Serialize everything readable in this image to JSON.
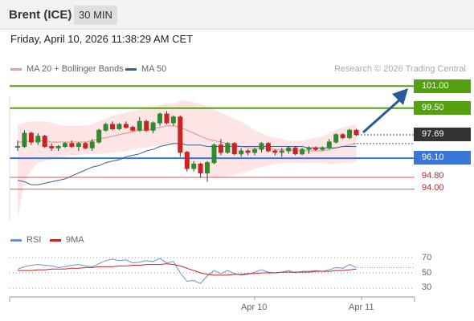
{
  "header": {
    "instrument": "Brent (ICE)",
    "interval": "30 MIN"
  },
  "timestamp": "Friday, April 10, 2026 11:38:29 AM CET",
  "legend": {
    "bb_label": "MA 20 + Bollinger Bands",
    "ma50_label": "MA 50",
    "credit": "Research © 2026 Trading Central",
    "rsi_label": "RSI",
    "ma9_label": "9MA"
  },
  "colors": {
    "up": "#2e8b2e",
    "down": "#cc2222",
    "resistance": "#55a011",
    "support": "#3a76d8",
    "current": "#333333",
    "target_line": "#e05555",
    "bb_fill": "#fde0e0",
    "ma20": "#e88a8a",
    "ma50": "#3b5f94",
    "arrow": "#2a5a9c",
    "rsi": "#6a8fd8",
    "rsi_ma": "#cc2222"
  },
  "levels": [
    {
      "value": "101.00",
      "style": "resistance"
    },
    {
      "value": "99.50",
      "style": "resistance"
    },
    {
      "value": "97.69",
      "style": "current"
    },
    {
      "value": "96.10",
      "style": "support"
    },
    {
      "value": "94.80",
      "style": "target"
    },
    {
      "value": "94.00",
      "style": "target"
    }
  ],
  "x_labels": [
    "Apr 10",
    "Apr 11"
  ],
  "rsi_levels": [
    "70",
    "50",
    "30"
  ],
  "chart_data": {
    "type": "candlestick",
    "price_range": [
      91.5,
      103.5
    ],
    "candles": [
      [
        96.9,
        97.3,
        96.6,
        96.9
      ],
      [
        96.9,
        98.0,
        96.8,
        97.8
      ],
      [
        97.8,
        97.9,
        97.0,
        97.2
      ],
      [
        97.2,
        97.8,
        97.0,
        97.6
      ],
      [
        97.6,
        97.7,
        96.8,
        96.9
      ],
      [
        96.9,
        97.1,
        96.6,
        96.8
      ],
      [
        96.8,
        97.0,
        96.6,
        96.9
      ],
      [
        96.9,
        97.2,
        96.8,
        97.1
      ],
      [
        97.1,
        97.3,
        96.8,
        96.9
      ],
      [
        96.9,
        97.2,
        96.6,
        97.1
      ],
      [
        97.1,
        97.2,
        96.7,
        96.8
      ],
      [
        96.8,
        97.4,
        96.6,
        97.2
      ],
      [
        97.2,
        98.1,
        97.1,
        98.0
      ],
      [
        98.0,
        98.5,
        97.9,
        98.4
      ],
      [
        98.4,
        98.6,
        98.0,
        98.1
      ],
      [
        98.1,
        98.5,
        98.0,
        98.4
      ],
      [
        98.4,
        98.6,
        98.1,
        98.2
      ],
      [
        98.2,
        98.3,
        97.9,
        98.0
      ],
      [
        98.0,
        98.9,
        97.9,
        98.6
      ],
      [
        98.6,
        98.7,
        97.9,
        98.0
      ],
      [
        98.0,
        98.6,
        97.8,
        98.5
      ],
      [
        98.5,
        99.2,
        98.3,
        99.1
      ],
      [
        99.1,
        99.3,
        98.4,
        98.5
      ],
      [
        98.5,
        99.0,
        98.3,
        98.9
      ],
      [
        98.9,
        99.0,
        96.2,
        96.5
      ],
      [
        96.5,
        96.6,
        95.2,
        95.4
      ],
      [
        95.4,
        95.9,
        95.2,
        95.7
      ],
      [
        95.7,
        95.8,
        94.8,
        95.1
      ],
      [
        95.1,
        95.9,
        94.5,
        95.8
      ],
      [
        95.8,
        97.1,
        95.7,
        97.0
      ],
      [
        97.0,
        97.4,
        96.3,
        96.5
      ],
      [
        96.5,
        97.2,
        96.4,
        97.1
      ],
      [
        97.1,
        97.2,
        96.3,
        96.4
      ],
      [
        96.4,
        96.8,
        96.2,
        96.6
      ],
      [
        96.6,
        96.7,
        96.3,
        96.5
      ],
      [
        96.5,
        96.8,
        96.3,
        96.7
      ],
      [
        96.7,
        97.2,
        96.5,
        97.1
      ],
      [
        97.1,
        97.2,
        96.5,
        96.6
      ],
      [
        96.6,
        96.7,
        96.3,
        96.5
      ],
      [
        96.5,
        96.8,
        96.2,
        96.6
      ],
      [
        96.6,
        96.9,
        96.4,
        96.8
      ],
      [
        96.8,
        96.9,
        96.3,
        96.4
      ],
      [
        96.4,
        96.8,
        96.3,
        96.7
      ],
      [
        96.7,
        96.9,
        96.4,
        96.8
      ],
      [
        96.8,
        96.9,
        96.6,
        96.7
      ],
      [
        96.7,
        96.9,
        96.6,
        96.8
      ],
      [
        96.8,
        97.4,
        96.7,
        97.2
      ],
      [
        97.2,
        97.8,
        97.1,
        97.7
      ],
      [
        97.7,
        97.8,
        97.4,
        97.5
      ],
      [
        97.5,
        98.1,
        97.4,
        98.0
      ],
      [
        98.0,
        98.1,
        97.6,
        97.7
      ]
    ],
    "ma20": [
      97.2,
      97.2,
      97.3,
      97.3,
      97.3,
      97.2,
      97.2,
      97.2,
      97.2,
      97.2,
      97.2,
      97.3,
      97.4,
      97.5,
      97.6,
      97.7,
      97.8,
      97.9,
      98.0,
      98.0,
      98.1,
      98.2,
      98.3,
      98.3,
      98.2,
      98.0,
      97.8,
      97.6,
      97.4,
      97.3,
      97.2,
      97.1,
      97.0,
      96.9,
      96.8,
      96.8,
      96.8,
      96.8,
      96.7,
      96.7,
      96.7,
      96.6,
      96.6,
      96.6,
      96.6,
      96.6,
      96.7,
      96.8,
      96.9,
      97.0,
      97.1
    ],
    "bb_upper": [
      98.4,
      98.5,
      98.6,
      98.6,
      98.6,
      98.5,
      98.4,
      98.3,
      98.3,
      98.3,
      98.3,
      98.4,
      98.6,
      98.8,
      99.0,
      99.1,
      99.2,
      99.3,
      99.4,
      99.5,
      99.6,
      99.7,
      99.8,
      99.8,
      100.0,
      100.0,
      99.9,
      99.8,
      99.6,
      99.4,
      99.2,
      99.0,
      98.8,
      98.6,
      98.3,
      98.0,
      97.8,
      97.6,
      97.5,
      97.4,
      97.3,
      97.3,
      97.3,
      97.4,
      97.5,
      97.6,
      97.8,
      98.0,
      98.2,
      98.3,
      98.4
    ],
    "bb_lower": [
      92.0,
      94.5,
      95.3,
      95.8,
      95.9,
      96.0,
      96.1,
      96.2,
      96.3,
      96.3,
      96.4,
      96.4,
      96.4,
      96.4,
      96.5,
      96.5,
      96.6,
      96.7,
      96.8,
      96.8,
      96.9,
      97.0,
      97.0,
      97.0,
      96.6,
      95.8,
      95.4,
      95.1,
      94.9,
      94.8,
      94.8,
      94.9,
      95.0,
      95.1,
      95.2,
      95.4,
      95.5,
      95.6,
      95.7,
      95.8,
      95.8,
      95.8,
      95.8,
      95.8,
      95.8,
      95.8,
      95.7,
      95.7,
      95.8,
      95.8,
      95.9
    ],
    "ma50": [
      94.6,
      94.5,
      94.3,
      94.3,
      94.4,
      94.5,
      94.6,
      94.7,
      94.9,
      95.1,
      95.3,
      95.5,
      95.6,
      95.8,
      95.9,
      96.0,
      96.2,
      96.3,
      96.4,
      96.6,
      96.7,
      96.9,
      97.0,
      97.1,
      97.1,
      97.0,
      97.0,
      97.0,
      96.9,
      96.9,
      96.9,
      96.9,
      96.9,
      96.9,
      96.9,
      96.9,
      96.9,
      96.9,
      96.9,
      96.9,
      96.9,
      96.9,
      96.9,
      96.8,
      96.8,
      96.8,
      96.8,
      96.8,
      96.9,
      96.9,
      96.9
    ],
    "forecast_target": 101.0,
    "rsi": [
      55,
      58,
      60,
      61,
      60,
      59,
      57,
      58,
      60,
      61,
      59,
      58,
      62,
      66,
      68,
      66,
      67,
      63,
      64,
      66,
      65,
      69,
      63,
      65,
      50,
      39,
      40,
      36,
      46,
      53,
      49,
      53,
      49,
      47,
      48,
      51,
      54,
      51,
      50,
      51,
      53,
      50,
      52,
      52,
      53,
      52,
      54,
      57,
      56,
      61,
      57
    ],
    "rsi_ma": [
      53,
      53,
      53,
      54,
      54,
      55,
      55,
      55,
      56,
      56,
      57,
      57,
      58,
      58,
      58,
      59,
      59,
      60,
      60,
      61,
      61,
      61,
      62,
      61,
      59,
      56,
      53,
      50,
      48,
      47,
      47,
      47,
      48,
      48,
      49,
      49,
      50,
      50,
      50,
      51,
      51,
      51,
      51,
      51,
      52,
      52,
      52,
      53,
      53,
      54,
      55
    ],
    "rsi_range": [
      20,
      80
    ]
  }
}
